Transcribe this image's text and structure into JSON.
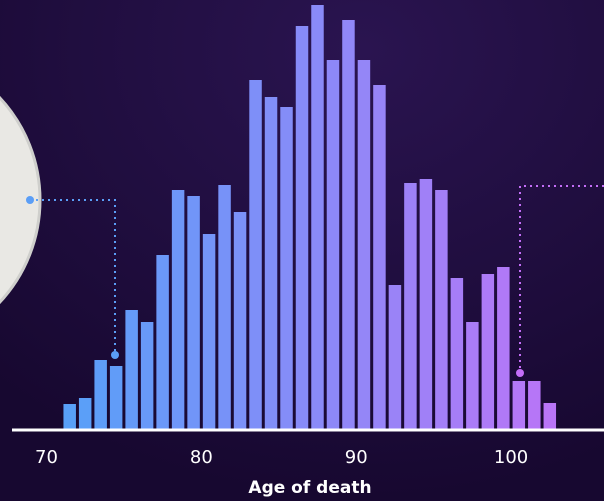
{
  "chart_data": {
    "type": "histogram",
    "x_label": "Age of death",
    "bins": [
      71,
      72,
      73,
      74,
      75,
      76,
      77,
      78,
      79,
      80,
      81,
      82,
      83,
      84,
      85,
      86,
      87,
      88,
      89,
      90,
      91,
      92,
      93,
      94,
      95,
      96,
      97,
      98,
      99,
      100,
      101,
      102,
      103,
      104,
      105,
      106,
      107
    ],
    "values": [
      26,
      32,
      70,
      64,
      120,
      108,
      175,
      240,
      234,
      196,
      245,
      218,
      350,
      333,
      323,
      404,
      425,
      370,
      410,
      370,
      345,
      145,
      247,
      251,
      240,
      152,
      108,
      156,
      163,
      49,
      49,
      27,
      0,
      0,
      0,
      5
    ],
    "colors": [
      "#58a0f8",
      "#c96ef7"
    ],
    "xlim": [
      67,
      106
    ],
    "xticks": [
      70,
      80,
      90,
      100
    ],
    "ylim": [
      0,
      430
    ]
  }
}
